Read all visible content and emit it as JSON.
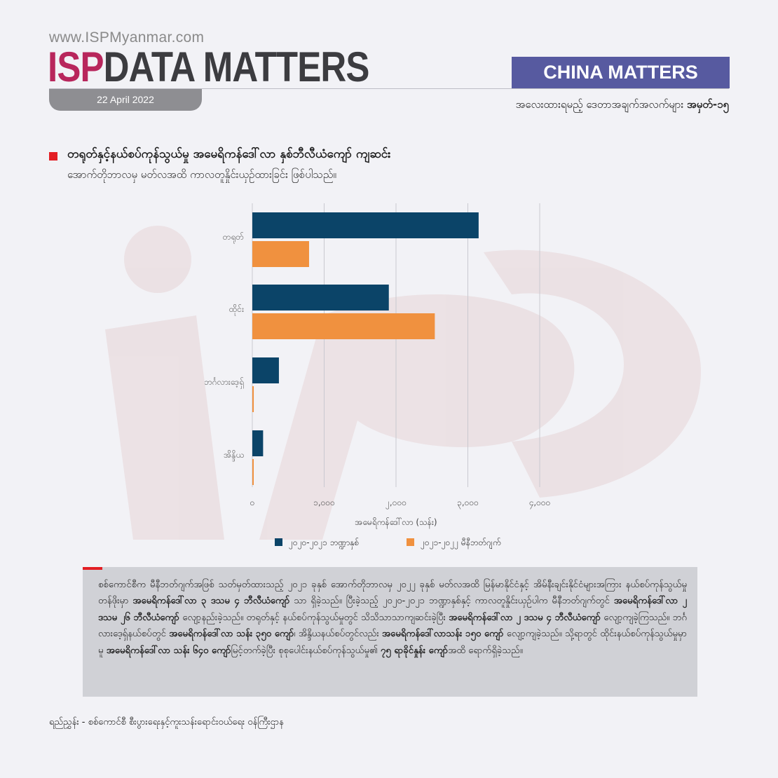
{
  "header": {
    "site_url": "www.ISPMyanmar.com",
    "brand_isp": "ISP",
    "brand_rest": "DATA MATTERS",
    "date": "22 April 2022",
    "tag": "CHINA MATTERS",
    "subhead_text": "အလေးထားရမည့် ဒေတာအချက်အလက်များ ",
    "subhead_number": "အမှတ်-၁၅"
  },
  "title": "တရုတ်နှင့်နယ်စပ်ကုန်သွယ်မှု အမေရိကန်ဒေါ်လာ နှစ်ဘီလီယံကျော် ကျဆင်း",
  "subtitle": "အောက်တိုဘာလမှ မတ်လအထိ ကာလတူနှိုင်းယှဉ်ထားခြင်း ဖြစ်ပါသည်။",
  "colors": {
    "series1": "#0b4468",
    "series2": "#f0913f",
    "accent": "#e31e24",
    "tag_bg": "#575aa0"
  },
  "chart_data": {
    "type": "bar",
    "orientation": "horizontal",
    "categories": [
      "တရုတ်",
      "ထိုင်း",
      "ဘင်္ဂလားဒေ့ရှ်",
      "အိန္ဒိယ"
    ],
    "series": [
      {
        "name": "၂၀၂၀-၂၀၂၁ ဘဏ္ဍာနှစ်",
        "values": [
          3150,
          1900,
          370,
          150
        ]
      },
      {
        "name": "၂၀၂၁-၂၀၂၂ မီနီဘတ်ဂျက်",
        "values": [
          790,
          2540,
          20,
          15
        ]
      }
    ],
    "xlabel": "အမေရိကန်ဒေါ်လာ (သန်း)",
    "xticks": [
      "၀",
      "၁,၀၀၀",
      "၂,၀၀၀",
      "၃,၀၀၀",
      "၄,၀၀၀"
    ],
    "xlim": [
      0,
      4000
    ],
    "grid": "vertical",
    "legend": "bottom"
  },
  "note": {
    "p1": "စစ်ကောင်စီက မီနီဘတ်ဂျက်အဖြစ် သတ်မှတ်ထားသည့် ၂၀၂၁ ခုနှစ် အောက်တိုဘာလမှ ၂၀၂၂ ခုနှစ် မတ်လအထိ မြန်မာနိုင်ငံနှင့် အိမ်နီးချင်းနိုင်ငံများအကြား နယ်စပ်ကုန်သွယ်မှုတန်ဖိုးမှာ ",
    "b1": "အမေရိကန်ဒေါ်လာ ၃ ဒသမ ၄ ဘီလီယံကျော်",
    "p2": " သာ ရှိခဲ့သည်။ ပြီးခဲ့သည့် ၂၀၂၀-၂၀၂၁ ဘဏ္ဍာနှစ်နှင့် ကာလတူနှိုင်းယှဉ်ပါက မီနီဘတ်ဂျက်တွင် ",
    "b2": "အမေရိကန်ဒေါ်လာ ၂ ဒသမ ၂၆ ဘီလီယံကျော်",
    "p3": " လျော့နည်းခဲ့သည်။ တရုတ်နှင့် နယ်စပ်ကုန်သွယ်မှုတွင် သိသိသာသာကျဆင်းခဲ့ပြီး ",
    "b3": "အမေရိကန်ဒေါ်လာ ၂ ဒသမ ၄ ဘီလီယံကျော်",
    "p4": " လျော့ကျခဲ့ကြသည်။ ဘင်္ဂလားဒေ့ရှ်နယ်စပ်တွင် ",
    "b4": "အမေရိကန်ဒေါ်လာ သန်း ၃၅၀ ကျော်",
    "p5": "၊ အိန္ဒိယနယ်စပ်တွင်လည်း ",
    "b5": "အမေရိကန်ဒေါ်လာသန်း ၁၅၀ ကျော်",
    "p6": " လျော့ကျခဲ့သည်။ သို့ရာတွင် ထိုင်းနယ်စပ်ကုန်သွယ်မှုမှာမူ ",
    "b6": "အမေရိကန်ဒေါ်လာ သန်း ၆၄၀ ကျော်",
    "p7": "မြင့်တက်ခဲ့ပြီး စုစုပေါင်းနယ်စပ်ကုန်သွယ်မှု၏ ",
    "b7": "၇၅ ရာခိုင်နှုန်း ကျော်",
    "p8": "အထိ ရောက်ရှိခဲ့သည်။"
  },
  "source": "ရည်ညွှန်း - စစ်ကောင်စီ စီးပွားရေးနှင့်ကူးသန်းရောင်းဝယ်ရေး ဝန်ကြီးဌာန"
}
